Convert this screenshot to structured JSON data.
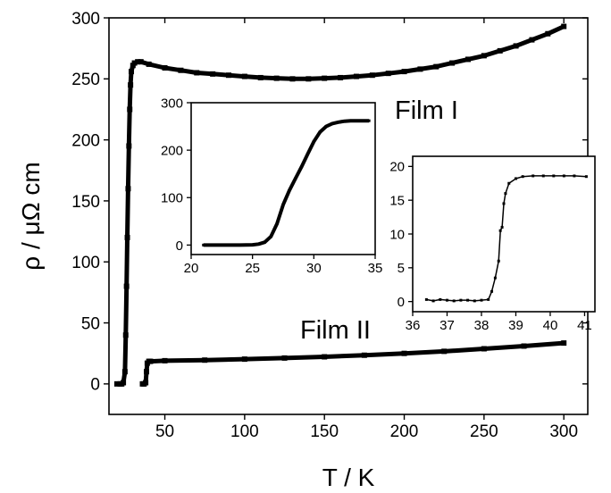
{
  "chart_data": [
    {
      "type": "scatter",
      "role": "main",
      "xlabel": "T / K",
      "ylabel": "ρ / μΩ cm",
      "xlim": [
        15,
        315
      ],
      "ylim": [
        -25,
        300
      ],
      "x_ticks": [
        50,
        100,
        150,
        200,
        250,
        300
      ],
      "y_ticks": [
        0,
        50,
        100,
        150,
        200,
        250,
        300
      ],
      "grid": false,
      "series": [
        {
          "name": "Film I",
          "points": [
            [
              20,
              0
            ],
            [
              22,
              0
            ],
            [
              23,
              0
            ],
            [
              24,
              1
            ],
            [
              25,
              10
            ],
            [
              25.5,
              40
            ],
            [
              26,
              80
            ],
            [
              26.5,
              120
            ],
            [
              27,
              160
            ],
            [
              27.5,
              195
            ],
            [
              28,
              225
            ],
            [
              28.5,
              245
            ],
            [
              29,
              256
            ],
            [
              30,
              261
            ],
            [
              31,
              263
            ],
            [
              33,
              264
            ],
            [
              35,
              264
            ],
            [
              40,
              262
            ],
            [
              50,
              259
            ],
            [
              60,
              257
            ],
            [
              70,
              255
            ],
            [
              80,
              254
            ],
            [
              90,
              253
            ],
            [
              100,
              252
            ],
            [
              110,
              251
            ],
            [
              120,
              250.5
            ],
            [
              130,
              250
            ],
            [
              140,
              250
            ],
            [
              150,
              250.5
            ],
            [
              160,
              251
            ],
            [
              170,
              252
            ],
            [
              180,
              253
            ],
            [
              190,
              254.5
            ],
            [
              200,
              256
            ],
            [
              210,
              258
            ],
            [
              220,
              260
            ],
            [
              230,
              263
            ],
            [
              240,
              266
            ],
            [
              250,
              269
            ],
            [
              260,
              273
            ],
            [
              270,
              277
            ],
            [
              280,
              282
            ],
            [
              290,
              287
            ],
            [
              300,
              293
            ]
          ]
        },
        {
          "name": "Film II",
          "points": [
            [
              36,
              0
            ],
            [
              37,
              0
            ],
            [
              38,
              1
            ],
            [
              38.5,
              10
            ],
            [
              39,
              17
            ],
            [
              40,
              18.5
            ],
            [
              41,
              18.5
            ],
            [
              50,
              19
            ],
            [
              75,
              19.5
            ],
            [
              100,
              20.3
            ],
            [
              125,
              21.2
            ],
            [
              150,
              22.2
            ],
            [
              175,
              23.5
            ],
            [
              200,
              25
            ],
            [
              225,
              26.7
            ],
            [
              250,
              28.8
            ],
            [
              275,
              31
            ],
            [
              300,
              33.5
            ]
          ]
        }
      ],
      "annotations": [
        "Film I",
        "Film II"
      ]
    },
    {
      "type": "scatter",
      "role": "inset-film-I",
      "xlim": [
        20,
        35
      ],
      "ylim": [
        -20,
        300
      ],
      "x_ticks": [
        20,
        25,
        30,
        35
      ],
      "y_ticks": [
        0,
        100,
        200,
        300
      ],
      "series": [
        {
          "points": [
            [
              21,
              0
            ],
            [
              22,
              0
            ],
            [
              23,
              0
            ],
            [
              24,
              0
            ],
            [
              25,
              0.5
            ],
            [
              25.5,
              2
            ],
            [
              26,
              6
            ],
            [
              26.5,
              18
            ],
            [
              27,
              45
            ],
            [
              27.5,
              85
            ],
            [
              28,
              115
            ],
            [
              28.5,
              140
            ],
            [
              29,
              165
            ],
            [
              29.5,
              192
            ],
            [
              30,
              218
            ],
            [
              30.5,
              238
            ],
            [
              31,
              250
            ],
            [
              31.5,
              256
            ],
            [
              32,
              259
            ],
            [
              32.5,
              261
            ],
            [
              33,
              262
            ],
            [
              34,
              262
            ],
            [
              34.5,
              262
            ]
          ]
        }
      ]
    },
    {
      "type": "scatter",
      "role": "inset-film-II",
      "xlim": [
        36,
        41.3
      ],
      "ylim": [
        -1.5,
        21.5
      ],
      "x_ticks": [
        36,
        37,
        38,
        39,
        40,
        41
      ],
      "y_ticks": [
        0,
        5,
        10,
        15,
        20
      ],
      "series": [
        {
          "points": [
            [
              36.4,
              0.3
            ],
            [
              36.6,
              0.1
            ],
            [
              36.8,
              0.3
            ],
            [
              37,
              0.2
            ],
            [
              37.2,
              0.1
            ],
            [
              37.4,
              0.2
            ],
            [
              37.6,
              0.2
            ],
            [
              37.8,
              0.1
            ],
            [
              38,
              0.2
            ],
            [
              38.2,
              0.3
            ],
            [
              38.3,
              1.5
            ],
            [
              38.4,
              3.5
            ],
            [
              38.5,
              6
            ],
            [
              38.55,
              10.5
            ],
            [
              38.6,
              11
            ],
            [
              38.65,
              14.5
            ],
            [
              38.7,
              16
            ],
            [
              38.8,
              17.5
            ],
            [
              39,
              18.2
            ],
            [
              39.2,
              18.5
            ],
            [
              39.5,
              18.6
            ],
            [
              39.8,
              18.6
            ],
            [
              40.1,
              18.6
            ],
            [
              40.4,
              18.6
            ],
            [
              40.7,
              18.6
            ],
            [
              41.05,
              18.5
            ]
          ]
        }
      ]
    }
  ]
}
